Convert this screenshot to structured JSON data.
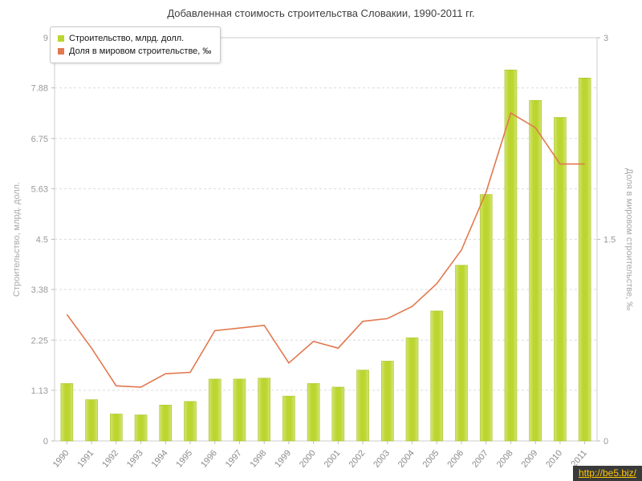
{
  "chart_data": {
    "type": "bar",
    "title": "Добавленная стоимость строительства Словакии, 1990-2011 гг.",
    "categories": [
      "1990",
      "1991",
      "1992",
      "1993",
      "1994",
      "1995",
      "1996",
      "1997",
      "1998",
      "1999",
      "2000",
      "2001",
      "2002",
      "2003",
      "2004",
      "2005",
      "2006",
      "2007",
      "2008",
      "2009",
      "2010",
      "2011"
    ],
    "series": [
      {
        "name": "Строительство, млрд. долл.",
        "type": "bar",
        "axis": "left",
        "color": "#bcd52f",
        "color_light": "#d3e573",
        "values": [
          1.28,
          0.92,
          0.6,
          0.58,
          0.8,
          0.88,
          1.38,
          1.38,
          1.4,
          1.0,
          1.28,
          1.2,
          1.58,
          1.78,
          2.3,
          2.9,
          3.92,
          5.5,
          8.28,
          7.6,
          7.22,
          8.1
        ]
      },
      {
        "name": "Доля в мировом строительстве, ‰",
        "type": "line",
        "axis": "right",
        "color": "#e2784e",
        "values": [
          0.94,
          0.69,
          0.41,
          0.4,
          0.5,
          0.51,
          0.82,
          0.84,
          0.86,
          0.58,
          0.74,
          0.69,
          0.89,
          0.91,
          1.0,
          1.17,
          1.42,
          1.85,
          2.44,
          2.33,
          2.06,
          2.06
        ]
      }
    ],
    "left_axis": {
      "label": "Строительство, млрд. долл.",
      "min": 0,
      "max": 9,
      "ticks": [
        0,
        1.13,
        2.25,
        3.38,
        4.5,
        5.63,
        6.75,
        7.88,
        9
      ]
    },
    "right_axis": {
      "label": "Доля в мировом строительстве, ‰",
      "min": 0,
      "max": 3,
      "ticks": [
        0,
        1.5,
        3
      ]
    },
    "grid": true,
    "legend_position": "top-left"
  },
  "watermark": {
    "text": "http://be5.biz/",
    "color": "#ffc800"
  }
}
